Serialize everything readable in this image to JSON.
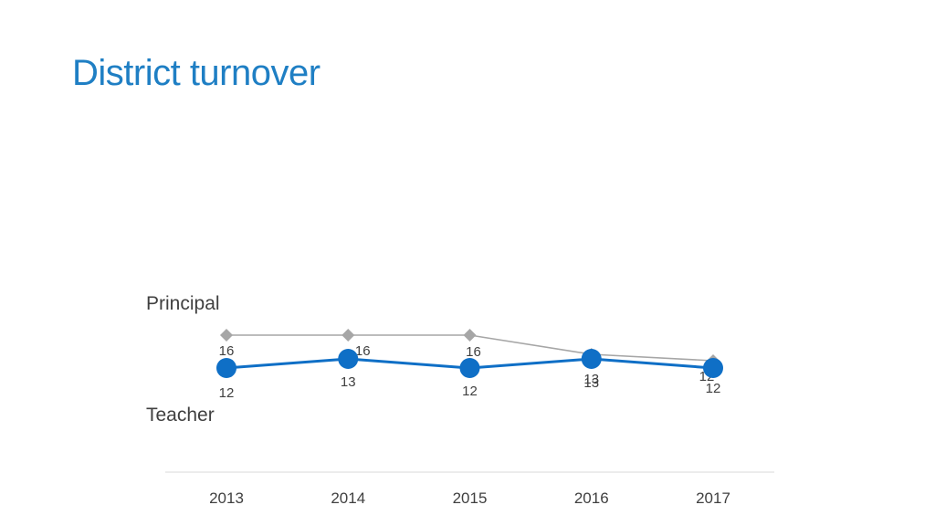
{
  "slide": {
    "title": "District turnover"
  },
  "chart_data": {
    "type": "line",
    "title": "District turnover",
    "xlabel": "",
    "ylabel": "",
    "categories": [
      "2013",
      "2014",
      "2015",
      "2016",
      "2017"
    ],
    "grid": false,
    "series": [
      {
        "name": "Principal",
        "values": [
          16,
          16,
          16,
          13,
          12
        ],
        "color": "#a6a6a6",
        "marker": "diamond"
      },
      {
        "name": "Teacher",
        "values": [
          12,
          13,
          12,
          13,
          12
        ],
        "color": "#0f6fc6",
        "marker": "circle"
      }
    ]
  }
}
